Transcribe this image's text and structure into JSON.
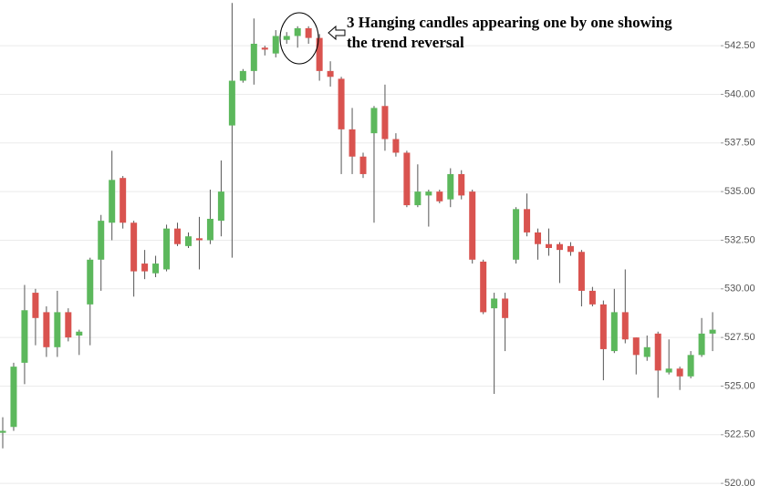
{
  "chart_data": {
    "type": "candlestick",
    "annotation": [
      "3 Hanging candles appearing one by one showing",
      "the trend reversal"
    ],
    "open": [
      522.6,
      522.9,
      526.2,
      529.8,
      528.8,
      527.0,
      528.8,
      527.6,
      529.2,
      531.5,
      533.4,
      535.7,
      533.4,
      531.3,
      530.8,
      531.0,
      533.1,
      532.2,
      532.6,
      532.5,
      533.5,
      538.4,
      540.7,
      541.2,
      542.4,
      542.1,
      542.8,
      543.0,
      543.4,
      542.9,
      541.2,
      540.8,
      538.2,
      536.8,
      538.0,
      539.4,
      537.7,
      537.0,
      534.3,
      534.8,
      535.0,
      534.6,
      535.9,
      535.0,
      531.4,
      529.0,
      529.5,
      531.5,
      534.1,
      532.9,
      532.3,
      532.3,
      532.2,
      531.9,
      529.9,
      529.2,
      526.8,
      528.8,
      527.5,
      526.5,
      527.7,
      525.7,
      525.9,
      525.5,
      526.6,
      527.7
    ],
    "high": [
      523.4,
      526.2,
      530.2,
      530.0,
      529.1,
      529.9,
      529.0,
      527.9,
      531.6,
      533.8,
      537.1,
      535.8,
      533.5,
      532.0,
      531.7,
      533.3,
      533.4,
      532.9,
      533.7,
      535.1,
      536.6,
      544.7,
      541.3,
      543.9,
      542.5,
      543.3,
      543.2,
      543.5,
      543.5,
      543.1,
      541.7,
      540.9,
      539.3,
      537.0,
      539.4,
      540.5,
      538.0,
      537.1,
      536.4,
      535.1,
      535.1,
      536.2,
      536.1,
      535.1,
      531.5,
      529.8,
      529.8,
      534.2,
      534.9,
      533.1,
      533.1,
      532.4,
      532.4,
      532.0,
      530.1,
      529.4,
      530.0,
      531.0,
      527.5,
      527.6,
      527.8,
      527.4,
      526.0,
      526.8,
      528.5,
      528.8
    ],
    "low": [
      521.8,
      522.7,
      525.1,
      527.1,
      526.5,
      526.5,
      527.3,
      526.6,
      527.1,
      529.9,
      532.5,
      533.1,
      529.6,
      530.5,
      530.6,
      530.9,
      532.2,
      532.1,
      531.0,
      532.3,
      532.7,
      531.6,
      540.6,
      540.5,
      542.0,
      541.9,
      542.6,
      542.4,
      542.6,
      540.7,
      540.4,
      535.9,
      535.9,
      535.7,
      533.4,
      537.1,
      536.8,
      534.2,
      534.2,
      533.2,
      534.4,
      534.2,
      534.6,
      531.3,
      528.7,
      524.6,
      526.8,
      531.3,
      532.7,
      531.5,
      531.7,
      530.3,
      531.7,
      529.1,
      529.1,
      525.3,
      526.7,
      527.2,
      525.6,
      526.3,
      524.4,
      525.6,
      524.8,
      525.4,
      526.5,
      526.8
    ],
    "close": [
      522.7,
      526.0,
      528.9,
      528.5,
      527.0,
      528.8,
      527.5,
      527.8,
      531.5,
      533.5,
      535.6,
      533.4,
      530.9,
      530.9,
      531.3,
      533.1,
      532.3,
      532.7,
      532.5,
      533.6,
      535.0,
      540.7,
      541.2,
      542.6,
      542.3,
      543.0,
      543.0,
      543.4,
      542.9,
      541.2,
      540.9,
      538.2,
      536.8,
      535.9,
      539.3,
      537.7,
      537.0,
      534.3,
      535.0,
      535.0,
      534.5,
      535.9,
      534.8,
      531.5,
      528.8,
      529.5,
      528.5,
      534.1,
      532.9,
      532.3,
      532.1,
      532.0,
      531.9,
      529.9,
      529.2,
      526.9,
      528.8,
      527.4,
      526.6,
      527.0,
      525.8,
      525.9,
      525.5,
      526.6,
      527.7,
      527.9
    ],
    "up_color": "#5cb85c",
    "down_color": "#d9534f",
    "ylim": [
      519.35,
      544.85
    ],
    "yticks": [
      {
        "value": 520,
        "label": "520.00"
      },
      {
        "value": 522.5,
        "label": "522.50"
      },
      {
        "value": 525,
        "label": "525.00"
      },
      {
        "value": 527.5,
        "label": "527.50"
      },
      {
        "value": 530,
        "label": "530.00"
      },
      {
        "value": 532.5,
        "label": "532.50"
      },
      {
        "value": 535,
        "label": "535.00"
      },
      {
        "value": 537.5,
        "label": "537.50"
      },
      {
        "value": 540,
        "label": "540.00"
      },
      {
        "value": 542.5,
        "label": "542.50"
      }
    ],
    "grid": true
  }
}
